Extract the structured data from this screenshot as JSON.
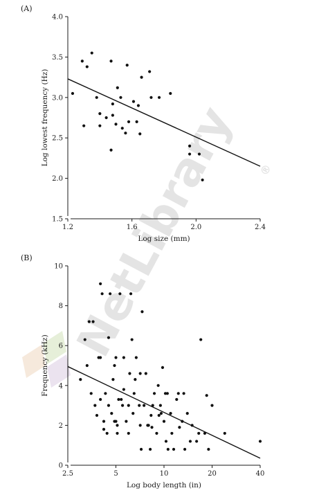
{
  "watermark": {
    "text": "NetLibrary",
    "registered": "®"
  },
  "chart_data": [
    {
      "panel": "(A)",
      "type": "scatter",
      "xlabel": "Log size (mm)",
      "ylabel": "Log lowest frequency (Hz)",
      "xlim": [
        1.2,
        2.4
      ],
      "ylim": [
        1.5,
        4.0
      ],
      "xticks": [
        1.2,
        1.6,
        2.0,
        2.4
      ],
      "xtick_labels": [
        "1.2",
        "1.6",
        "2.0",
        "2.4"
      ],
      "yticks": [
        1.5,
        2.0,
        2.5,
        3.0,
        3.5,
        4.0
      ],
      "ytick_labels": [
        "1.5",
        "2.0",
        "2.5",
        "3.0",
        "3.5",
        "4.0"
      ],
      "trendline": {
        "x": [
          1.2,
          2.4
        ],
        "y": [
          3.23,
          2.15
        ]
      },
      "x": [
        1.23,
        1.29,
        1.3,
        1.32,
        1.35,
        1.38,
        1.4,
        1.4,
        1.44,
        1.47,
        1.47,
        1.48,
        1.48,
        1.5,
        1.51,
        1.53,
        1.54,
        1.56,
        1.57,
        1.58,
        1.61,
        1.63,
        1.64,
        1.65,
        1.66,
        1.71,
        1.72,
        1.77,
        1.84,
        1.96,
        1.96,
        2.02,
        2.04
      ],
      "y": [
        3.05,
        3.45,
        2.65,
        3.38,
        3.55,
        3.0,
        2.8,
        2.65,
        2.75,
        3.45,
        2.35,
        2.92,
        2.78,
        2.67,
        3.12,
        3.0,
        2.62,
        2.56,
        3.4,
        2.7,
        2.95,
        2.7,
        2.9,
        2.55,
        3.25,
        3.32,
        3.0,
        3.0,
        3.05,
        2.4,
        2.3,
        2.3,
        1.98
      ]
    },
    {
      "panel": "(B)",
      "type": "scatter",
      "xlabel": "Log body length (in)",
      "ylabel": "Frequency (kHz)",
      "xscale": "log",
      "xlim": [
        2.5,
        40
      ],
      "ylim": [
        0,
        10
      ],
      "xticks": [
        2.5,
        5,
        10,
        20,
        40
      ],
      "xtick_labels": [
        "2.5",
        "5",
        "10",
        "20",
        "40"
      ],
      "yticks": [
        0,
        2,
        4,
        6,
        8,
        10
      ],
      "ytick_labels": [
        "0",
        "2",
        "4",
        "6",
        "8",
        "10"
      ],
      "trendline": {
        "x": [
          2.5,
          40
        ],
        "y": [
          4.95,
          0.35
        ]
      },
      "x": [
        3.0,
        3.2,
        3.3,
        3.5,
        3.6,
        3.7,
        3.8,
        4.0,
        4.0,
        4.1,
        4.2,
        4.3,
        4.4,
        4.5,
        4.5,
        4.6,
        4.7,
        4.8,
        5.0,
        5.0,
        5.1,
        5.2,
        5.3,
        5.5,
        5.6,
        5.8,
        6.0,
        6.1,
        6.2,
        6.4,
        6.5,
        6.7,
        7.0,
        7.1,
        7.3,
        7.5,
        7.7,
        8.0,
        8.2,
        8.5,
        8.7,
        9.0,
        9.3,
        9.5,
        9.8,
        10.0,
        10.3,
        10.5,
        11.0,
        11.5,
        12.0,
        12.5,
        13.0,
        13.5,
        14.0,
        15.0,
        16.0,
        17.0,
        18.0,
        19.0,
        20.0,
        24.0,
        40.0,
        3.4,
        4.2,
        4.9,
        5.4,
        6.3,
        7.2,
        8.4,
        9.6,
        11.2,
        13.3,
        16.5,
        4.0,
        4.9,
        6.0,
        7.1,
        8.3,
        9.2,
        10.6,
        12.3,
        14.6,
        18.5,
        3.9,
        5.1,
        6.6,
        7.9,
        10.2,
        5.6
      ],
      "y": [
        4.3,
        6.3,
        5.0,
        3.6,
        7.2,
        3.0,
        2.5,
        9.1,
        5.4,
        8.6,
        2.2,
        3.6,
        1.6,
        3.0,
        6.4,
        8.6,
        2.6,
        4.3,
        5.4,
        2.2,
        1.6,
        3.3,
        8.6,
        3.0,
        5.4,
        2.2,
        1.6,
        4.6,
        8.6,
        2.6,
        3.6,
        5.4,
        3.0,
        2.0,
        7.7,
        3.0,
        4.6,
        2.0,
        0.8,
        3.0,
        3.6,
        1.6,
        2.5,
        3.0,
        4.9,
        2.2,
        1.2,
        3.6,
        2.6,
        0.8,
        3.3,
        1.9,
        2.2,
        0.8,
        2.6,
        2.0,
        1.2,
        6.3,
        1.6,
        0.8,
        3.0,
        1.6,
        1.2,
        7.2,
        1.8,
        2.2,
        3.3,
        6.3,
        0.8,
        1.9,
        2.6,
        1.6,
        3.6,
        1.6,
        3.3,
        5.0,
        3.0,
        4.6,
        2.5,
        4.0,
        0.8,
        3.6,
        1.2,
        3.5,
        5.4,
        2.0,
        4.3,
        2.0,
        3.6,
        3.8
      ]
    }
  ]
}
